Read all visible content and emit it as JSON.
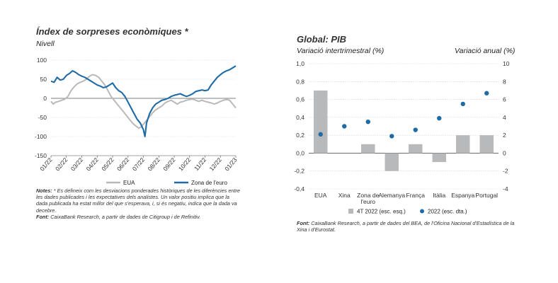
{
  "left": {
    "title": "Índex de sorpreses econòmiques *",
    "subtitle": "Nivell",
    "notes_label": "Notes:",
    "notes_text": "* Es defineix com les desviacions ponderades històriques de les diferències entre les dades publicades i les expectatives dels analistes. Un valor positiu implica que la dada publicada ha estat millor del que s'esperava, i, si és negatiu, indica que la dada va decebre.",
    "source_label": "Font:",
    "source_text": "CaixaBank Research, a partir de dades de Citigroup i de Refinitiv."
  },
  "right": {
    "title": "Global: PIB",
    "subtitle_left": "Variació intertrimestral (%)",
    "subtitle_right": "Variació anual (%)",
    "source_label": "Font:",
    "source_text": "CaixaBank Research, a partir de dades del BEA, de l'Oficina Nacional d'Estadística de la Xina i d'Eurostat."
  },
  "chart_data": [
    {
      "type": "line",
      "title": "Índex de sorpreses econòmiques *",
      "ylabel": "Nivell",
      "ylim": [
        -150,
        100
      ],
      "yticks": [
        -150,
        -100,
        -50,
        0,
        50,
        100
      ],
      "x_ticks": [
        "01/22",
        "02/22",
        "03/22",
        "04/22",
        "05/22",
        "06/22",
        "07/22",
        "08/22",
        "09/22",
        "10/22",
        "11/22",
        "12/22",
        "01/23"
      ],
      "grid": true,
      "legend_position": "bottom",
      "series": [
        {
          "name": "EUA",
          "color": "#b7b9bb",
          "points": [
            [
              0,
              -8
            ],
            [
              0.15,
              -15
            ],
            [
              0.3,
              -10
            ],
            [
              0.5,
              -8
            ],
            [
              0.7,
              -5
            ],
            [
              0.9,
              -2
            ],
            [
              1.1,
              5
            ],
            [
              1.3,
              20
            ],
            [
              1.5,
              30
            ],
            [
              1.7,
              38
            ],
            [
              1.9,
              42
            ],
            [
              2.1,
              45
            ],
            [
              2.3,
              50
            ],
            [
              2.5,
              58
            ],
            [
              2.7,
              62
            ],
            [
              2.9,
              60
            ],
            [
              3.1,
              55
            ],
            [
              3.3,
              45
            ],
            [
              3.5,
              35
            ],
            [
              3.7,
              20
            ],
            [
              3.9,
              5
            ],
            [
              4.1,
              -5
            ],
            [
              4.3,
              -15
            ],
            [
              4.5,
              -25
            ],
            [
              4.7,
              -35
            ],
            [
              4.9,
              -45
            ],
            [
              5.1,
              -55
            ],
            [
              5.3,
              -65
            ],
            [
              5.5,
              -72
            ],
            [
              5.7,
              -78
            ],
            [
              5.85,
              -75
            ],
            [
              6.0,
              -68
            ],
            [
              6.2,
              -58
            ],
            [
              6.4,
              -48
            ],
            [
              6.6,
              -38
            ],
            [
              6.8,
              -30
            ],
            [
              7.0,
              -25
            ],
            [
              7.2,
              -20
            ],
            [
              7.4,
              -12
            ],
            [
              7.6,
              -8
            ],
            [
              7.8,
              -5
            ],
            [
              8.0,
              -10
            ],
            [
              8.2,
              -15
            ],
            [
              8.4,
              -10
            ],
            [
              8.6,
              -8
            ],
            [
              8.8,
              -5
            ],
            [
              9.0,
              -3
            ],
            [
              9.2,
              -2
            ],
            [
              9.4,
              -5
            ],
            [
              9.6,
              -8
            ],
            [
              9.8,
              -5
            ],
            [
              10.0,
              -8
            ],
            [
              10.2,
              -10
            ],
            [
              10.4,
              -12
            ],
            [
              10.6,
              -15
            ],
            [
              10.8,
              -12
            ],
            [
              11.0,
              -8
            ],
            [
              11.2,
              -5
            ],
            [
              11.4,
              -3
            ],
            [
              11.6,
              -5
            ],
            [
              11.8,
              -15
            ],
            [
              12.0,
              -25
            ]
          ]
        },
        {
          "name": "Zona de l'euro",
          "color": "#1f6ba5",
          "points": [
            [
              0,
              45
            ],
            [
              0.2,
              42
            ],
            [
              0.4,
              55
            ],
            [
              0.6,
              48
            ],
            [
              0.8,
              50
            ],
            [
              1.0,
              60
            ],
            [
              1.2,
              65
            ],
            [
              1.4,
              72
            ],
            [
              1.6,
              68
            ],
            [
              1.8,
              62
            ],
            [
              2.0,
              58
            ],
            [
              2.2,
              55
            ],
            [
              2.4,
              50
            ],
            [
              2.6,
              45
            ],
            [
              2.8,
              40
            ],
            [
              3.0,
              35
            ],
            [
              3.2,
              32
            ],
            [
              3.4,
              28
            ],
            [
              3.6,
              30
            ],
            [
              3.8,
              35
            ],
            [
              4.0,
              40
            ],
            [
              4.2,
              28
            ],
            [
              4.4,
              20
            ],
            [
              4.6,
              15
            ],
            [
              4.8,
              5
            ],
            [
              5.0,
              -10
            ],
            [
              5.2,
              -25
            ],
            [
              5.4,
              -40
            ],
            [
              5.6,
              -55
            ],
            [
              5.8,
              -65
            ],
            [
              6.0,
              -82
            ],
            [
              6.1,
              -100
            ],
            [
              6.2,
              -65
            ],
            [
              6.4,
              -40
            ],
            [
              6.6,
              -25
            ],
            [
              6.8,
              -15
            ],
            [
              7.0,
              -10
            ],
            [
              7.2,
              -5
            ],
            [
              7.4,
              -3
            ],
            [
              7.6,
              0
            ],
            [
              7.8,
              5
            ],
            [
              8.0,
              8
            ],
            [
              8.2,
              10
            ],
            [
              8.4,
              12
            ],
            [
              8.6,
              8
            ],
            [
              8.8,
              5
            ],
            [
              9.0,
              8
            ],
            [
              9.2,
              12
            ],
            [
              9.4,
              18
            ],
            [
              9.6,
              20
            ],
            [
              9.8,
              22
            ],
            [
              10.0,
              20
            ],
            [
              10.2,
              22
            ],
            [
              10.4,
              35
            ],
            [
              10.6,
              45
            ],
            [
              10.8,
              55
            ],
            [
              11.0,
              62
            ],
            [
              11.2,
              68
            ],
            [
              11.4,
              72
            ],
            [
              11.6,
              75
            ],
            [
              11.8,
              80
            ],
            [
              12.0,
              85
            ]
          ]
        }
      ]
    },
    {
      "type": "bar",
      "title": "Global: PIB",
      "categories": [
        "EUA",
        "Xina",
        "Zona de l'euro",
        "Alemanya",
        "França",
        "Itàlia",
        "Espanya",
        "Portugal"
      ],
      "ylabel_left": "Variació intertrimestral (%)",
      "ylabel_right": "Variació anual (%)",
      "ylim_left": [
        -0.4,
        1.0
      ],
      "yticks_left": [
        "-0,4",
        "-0,2",
        "0,0",
        "0,2",
        "0,4",
        "0,6",
        "0,8",
        "1,0"
      ],
      "ylim_right": [
        -4,
        10
      ],
      "yticks_right": [
        "-4",
        "-2",
        "0",
        "2",
        "4",
        "6",
        "8",
        "10"
      ],
      "grid": true,
      "legend_position": "bottom",
      "series": [
        {
          "name": "4T 2022 (esc. esq.)",
          "type": "bar",
          "axis": "left",
          "color": "#b7b9bb",
          "values": [
            0.7,
            null,
            0.1,
            -0.2,
            0.1,
            -0.1,
            0.2,
            0.2
          ]
        },
        {
          "name": "2022 (esc. dta.)",
          "type": "scatter",
          "axis": "right",
          "color": "#1f6ba5",
          "values": [
            2.1,
            3.0,
            3.5,
            1.9,
            2.6,
            3.9,
            5.5,
            6.7
          ]
        }
      ]
    }
  ]
}
